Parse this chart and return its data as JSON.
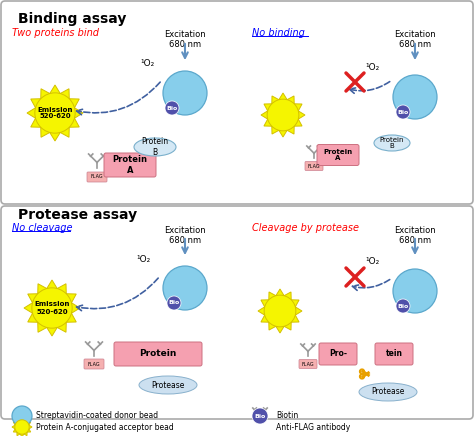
{
  "bg_color": "#ffffff",
  "panel_bg": "#f5f5f5",
  "binding_assay_title": "Binding assay",
  "protease_assay_title": "Protease assay",
  "two_proteins_bind_label": "Two proteins bind",
  "no_binding_label": "No binding",
  "no_cleavage_label": "No cleavage",
  "cleavage_label": "Cleavage by protease",
  "excitation_label": "Excitation\n680 nm",
  "emission_label": "Emission\n520-620",
  "o2_label": "¹O₂",
  "protein_a_label": "Protein\nA",
  "protein_b_label": "Protein\nB",
  "protein_label": "Protein",
  "flag_label": "FLAG",
  "bio_label": "Bio",
  "protease_label": "Protease",
  "legend_acceptor": "Protein A-conjugated acceptor bead",
  "legend_donor": "Streptavidin-coated donor bead",
  "legend_antibody": "Anti-FLAG antibody",
  "legend_biotin": "Biotin",
  "yellow_bead_color": "#f5f500",
  "yellow_bead_edge": "#d4c000",
  "blue_bead_color": "#87ceeb",
  "blue_bead_edge": "#5ba8cc",
  "protein_ellipse_color": "#d4e8f5",
  "protein_ellipse_edge": "#7ab0cc",
  "protein_rect_color": "#f5a0b0",
  "protein_rect_edge": "#cc7080",
  "bio_circle_color": "#5050aa",
  "bio_text_color": "#ffffff",
  "flag_rect_color": "#f5b0b0",
  "flag_rect_edge": "#cc8090",
  "arrow_color": "#6090c0",
  "dashed_arrow_color": "#4060a0",
  "red_x_color": "#dd2020",
  "scissors_color": "#e8a000",
  "panel_border_color": "#aaaaaa",
  "protease_ellipse_color": "#cce0f0",
  "protease_ellipse_edge": "#88b0cc"
}
